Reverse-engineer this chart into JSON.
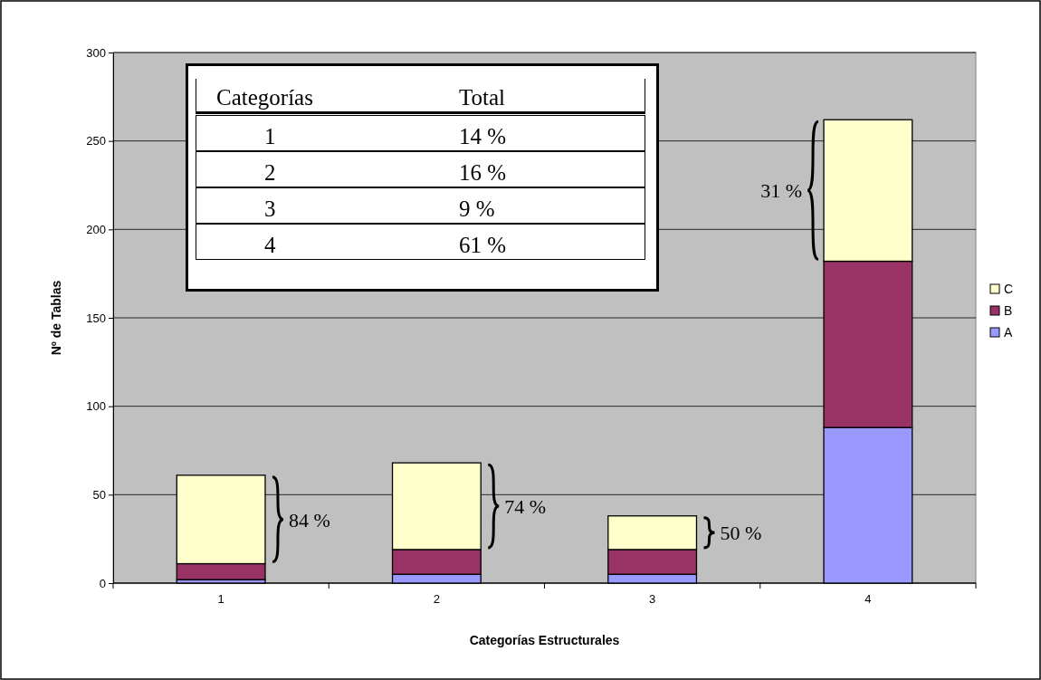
{
  "chart_data": {
    "type": "bar",
    "stacked": true,
    "xlabel": "Categorías Estructurales",
    "ylabel": "Nº de Tablas",
    "categories": [
      "1",
      "2",
      "3",
      "4"
    ],
    "series": [
      {
        "name": "A",
        "color": "#9999ff",
        "values": [
          2,
          5,
          5,
          88
        ]
      },
      {
        "name": "B",
        "color": "#993366",
        "values": [
          9,
          14,
          14,
          94
        ]
      },
      {
        "name": "C",
        "color": "#ffffcc",
        "values": [
          50,
          49,
          19,
          80
        ]
      }
    ],
    "ylim": [
      0,
      300
    ],
    "yticks": [
      0,
      50,
      100,
      150,
      200,
      250,
      300
    ],
    "grid": "y",
    "legend": "right",
    "annotations": [
      "Categorías",
      "Total",
      "1",
      "14 %",
      "2",
      "16 %",
      "3",
      "9 %",
      "4",
      "61 %",
      "84 %",
      "74 %",
      "50 %",
      "31 %"
    ]
  }
}
